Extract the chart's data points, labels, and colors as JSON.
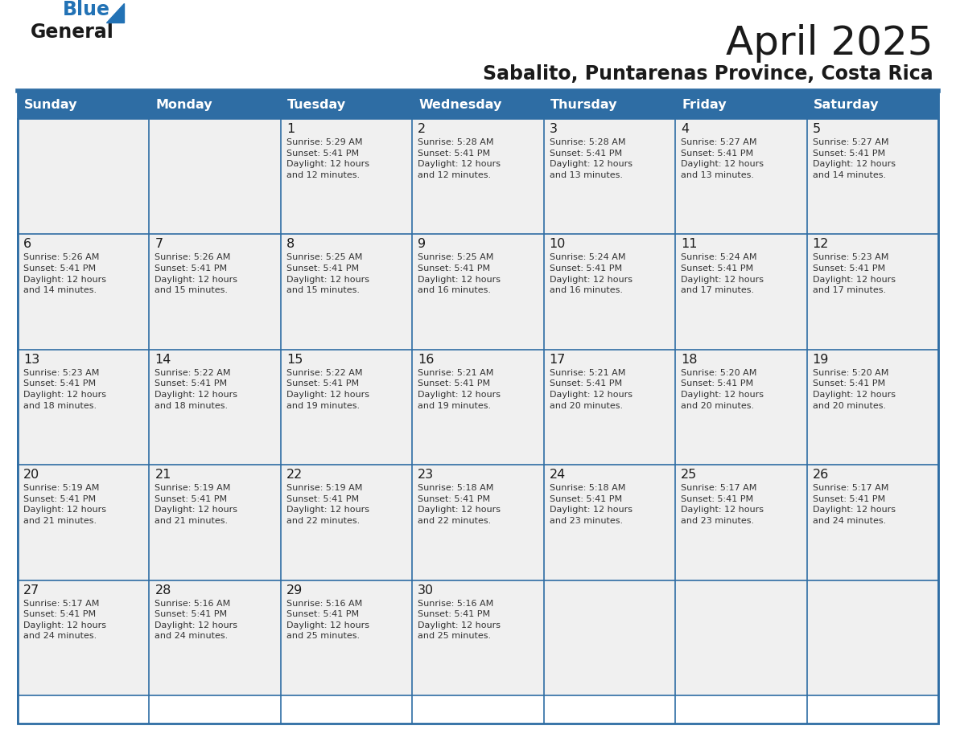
{
  "title": "April 2025",
  "subtitle": "Sabalito, Puntarenas Province, Costa Rica",
  "days_of_week": [
    "Sunday",
    "Monday",
    "Tuesday",
    "Wednesday",
    "Thursday",
    "Friday",
    "Saturday"
  ],
  "header_bg": "#2E6DA4",
  "header_text": "#FFFFFF",
  "cell_bg": "#F0F0F0",
  "cell_text": "#333333",
  "day_num_color": "#1a1a1a",
  "info_text_color": "#333333",
  "border_color": "#2E6DA4",
  "logo_general_color": "#1a1a1a",
  "logo_blue_color": "#2272B5",
  "weeks": [
    [
      {
        "day": null,
        "info": null
      },
      {
        "day": null,
        "info": null
      },
      {
        "day": 1,
        "info": "Sunrise: 5:29 AM\nSunset: 5:41 PM\nDaylight: 12 hours\nand 12 minutes."
      },
      {
        "day": 2,
        "info": "Sunrise: 5:28 AM\nSunset: 5:41 PM\nDaylight: 12 hours\nand 12 minutes."
      },
      {
        "day": 3,
        "info": "Sunrise: 5:28 AM\nSunset: 5:41 PM\nDaylight: 12 hours\nand 13 minutes."
      },
      {
        "day": 4,
        "info": "Sunrise: 5:27 AM\nSunset: 5:41 PM\nDaylight: 12 hours\nand 13 minutes."
      },
      {
        "day": 5,
        "info": "Sunrise: 5:27 AM\nSunset: 5:41 PM\nDaylight: 12 hours\nand 14 minutes."
      }
    ],
    [
      {
        "day": 6,
        "info": "Sunrise: 5:26 AM\nSunset: 5:41 PM\nDaylight: 12 hours\nand 14 minutes."
      },
      {
        "day": 7,
        "info": "Sunrise: 5:26 AM\nSunset: 5:41 PM\nDaylight: 12 hours\nand 15 minutes."
      },
      {
        "day": 8,
        "info": "Sunrise: 5:25 AM\nSunset: 5:41 PM\nDaylight: 12 hours\nand 15 minutes."
      },
      {
        "day": 9,
        "info": "Sunrise: 5:25 AM\nSunset: 5:41 PM\nDaylight: 12 hours\nand 16 minutes."
      },
      {
        "day": 10,
        "info": "Sunrise: 5:24 AM\nSunset: 5:41 PM\nDaylight: 12 hours\nand 16 minutes."
      },
      {
        "day": 11,
        "info": "Sunrise: 5:24 AM\nSunset: 5:41 PM\nDaylight: 12 hours\nand 17 minutes."
      },
      {
        "day": 12,
        "info": "Sunrise: 5:23 AM\nSunset: 5:41 PM\nDaylight: 12 hours\nand 17 minutes."
      }
    ],
    [
      {
        "day": 13,
        "info": "Sunrise: 5:23 AM\nSunset: 5:41 PM\nDaylight: 12 hours\nand 18 minutes."
      },
      {
        "day": 14,
        "info": "Sunrise: 5:22 AM\nSunset: 5:41 PM\nDaylight: 12 hours\nand 18 minutes."
      },
      {
        "day": 15,
        "info": "Sunrise: 5:22 AM\nSunset: 5:41 PM\nDaylight: 12 hours\nand 19 minutes."
      },
      {
        "day": 16,
        "info": "Sunrise: 5:21 AM\nSunset: 5:41 PM\nDaylight: 12 hours\nand 19 minutes."
      },
      {
        "day": 17,
        "info": "Sunrise: 5:21 AM\nSunset: 5:41 PM\nDaylight: 12 hours\nand 20 minutes."
      },
      {
        "day": 18,
        "info": "Sunrise: 5:20 AM\nSunset: 5:41 PM\nDaylight: 12 hours\nand 20 minutes."
      },
      {
        "day": 19,
        "info": "Sunrise: 5:20 AM\nSunset: 5:41 PM\nDaylight: 12 hours\nand 20 minutes."
      }
    ],
    [
      {
        "day": 20,
        "info": "Sunrise: 5:19 AM\nSunset: 5:41 PM\nDaylight: 12 hours\nand 21 minutes."
      },
      {
        "day": 21,
        "info": "Sunrise: 5:19 AM\nSunset: 5:41 PM\nDaylight: 12 hours\nand 21 minutes."
      },
      {
        "day": 22,
        "info": "Sunrise: 5:19 AM\nSunset: 5:41 PM\nDaylight: 12 hours\nand 22 minutes."
      },
      {
        "day": 23,
        "info": "Sunrise: 5:18 AM\nSunset: 5:41 PM\nDaylight: 12 hours\nand 22 minutes."
      },
      {
        "day": 24,
        "info": "Sunrise: 5:18 AM\nSunset: 5:41 PM\nDaylight: 12 hours\nand 23 minutes."
      },
      {
        "day": 25,
        "info": "Sunrise: 5:17 AM\nSunset: 5:41 PM\nDaylight: 12 hours\nand 23 minutes."
      },
      {
        "day": 26,
        "info": "Sunrise: 5:17 AM\nSunset: 5:41 PM\nDaylight: 12 hours\nand 24 minutes."
      }
    ],
    [
      {
        "day": 27,
        "info": "Sunrise: 5:17 AM\nSunset: 5:41 PM\nDaylight: 12 hours\nand 24 minutes."
      },
      {
        "day": 28,
        "info": "Sunrise: 5:16 AM\nSunset: 5:41 PM\nDaylight: 12 hours\nand 24 minutes."
      },
      {
        "day": 29,
        "info": "Sunrise: 5:16 AM\nSunset: 5:41 PM\nDaylight: 12 hours\nand 25 minutes."
      },
      {
        "day": 30,
        "info": "Sunrise: 5:16 AM\nSunset: 5:41 PM\nDaylight: 12 hours\nand 25 minutes."
      },
      {
        "day": null,
        "info": null
      },
      {
        "day": null,
        "info": null
      },
      {
        "day": null,
        "info": null
      }
    ]
  ]
}
